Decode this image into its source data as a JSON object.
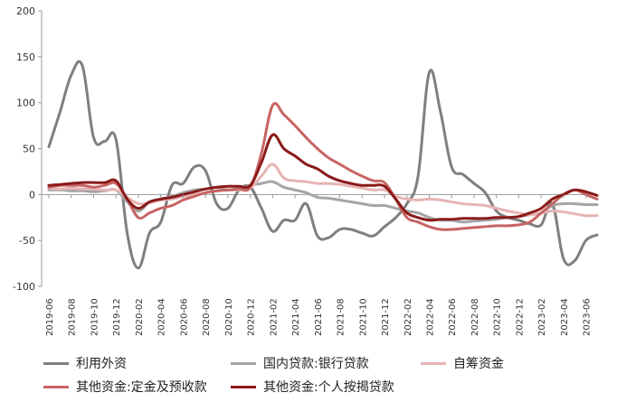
{
  "chart_data": {
    "type": "line",
    "title": "",
    "xlabel": "",
    "ylabel": "",
    "ylim": [
      -100,
      200
    ],
    "yticks": [
      -100,
      -50,
      0,
      50,
      100,
      150,
      200
    ],
    "x": [
      "2019-06",
      "2019-07",
      "2019-08",
      "2019-09",
      "2019-10",
      "2019-11",
      "2019-12",
      "2020-01",
      "2020-02",
      "2020-03",
      "2020-04",
      "2020-05",
      "2020-06",
      "2020-07",
      "2020-08",
      "2020-09",
      "2020-10",
      "2020-11",
      "2020-12",
      "2021-01",
      "2021-02",
      "2021-03",
      "2021-04",
      "2021-05",
      "2021-06",
      "2021-07",
      "2021-08",
      "2021-09",
      "2021-10",
      "2021-11",
      "2021-12",
      "2022-01",
      "2022-02",
      "2022-03",
      "2022-04",
      "2022-05",
      "2022-06",
      "2022-07",
      "2022-08",
      "2022-09",
      "2022-10",
      "2022-11",
      "2022-12",
      "2023-01",
      "2023-02",
      "2023-03",
      "2023-04",
      "2023-05",
      "2023-06",
      "2023-07"
    ],
    "xtick_labels": [
      "2019-06",
      "2019-08",
      "2019-10",
      "2019-12",
      "2020-02",
      "2020-04",
      "2020-06",
      "2020-08",
      "2020-10",
      "2020-12",
      "2021-02",
      "2021-04",
      "2021-06",
      "2021-08",
      "2021-10",
      "2021-12",
      "2022-02",
      "2022-04",
      "2022-06",
      "2022-08",
      "2022-10",
      "2022-12",
      "2023-02",
      "2023-04",
      "2023-06"
    ],
    "grid": false,
    "legend_position": "bottom",
    "series": [
      {
        "name": "利用外资",
        "color": "#7f7f7f",
        "values": [
          52,
          90,
          130,
          140,
          62,
          58,
          60,
          -42,
          -80,
          -42,
          -30,
          10,
          12,
          30,
          26,
          -10,
          -15,
          5,
          8,
          -15,
          -40,
          -28,
          -28,
          -10,
          -45,
          -47,
          -38,
          -38,
          -42,
          -45,
          -35,
          -25,
          -10,
          20,
          133,
          90,
          30,
          22,
          12,
          2,
          -18,
          -25,
          -28,
          -32,
          -33,
          -10,
          -70,
          -72,
          -50,
          -44
        ]
      },
      {
        "name": "国内贷款:银行贷款",
        "color": "#a5a5a5",
        "values": [
          5,
          5,
          4,
          4,
          3,
          4,
          5,
          -8,
          -18,
          -8,
          -5,
          -2,
          2,
          5,
          6,
          8,
          5,
          7,
          10,
          12,
          14,
          8,
          5,
          2,
          -3,
          -4,
          -6,
          -8,
          -10,
          -12,
          -12,
          -15,
          -18,
          -20,
          -25,
          -28,
          -28,
          -30,
          -29,
          -28,
          -27,
          -25,
          -24,
          -22,
          -20,
          -12,
          -10,
          -10,
          -11,
          -11
        ]
      },
      {
        "name": "自筹资金",
        "color": "#e8b4b4",
        "values": [
          7,
          6,
          7,
          6,
          6,
          5,
          5,
          -3,
          -10,
          -9,
          -6,
          -5,
          -2,
          0,
          2,
          4,
          5,
          5,
          7,
          20,
          33,
          18,
          15,
          14,
          12,
          12,
          11,
          9,
          7,
          5,
          5,
          -2,
          -5,
          -6,
          -5,
          -6,
          -8,
          -10,
          -11,
          -12,
          -15,
          -18,
          -20,
          -22,
          -20,
          -18,
          -19,
          -21,
          -23,
          -23
        ]
      },
      {
        "name": "其他资金:定金及预收款",
        "color": "#c86464",
        "values": [
          8,
          10,
          10,
          10,
          8,
          10,
          12,
          -5,
          -25,
          -20,
          -15,
          -12,
          -6,
          -2,
          2,
          4,
          5,
          6,
          8,
          45,
          97,
          87,
          75,
          62,
          50,
          40,
          33,
          26,
          20,
          15,
          13,
          -5,
          -25,
          -30,
          -35,
          -38,
          -38,
          -37,
          -36,
          -35,
          -34,
          -34,
          -33,
          -30,
          -20,
          -10,
          0,
          5,
          0,
          -5
        ]
      },
      {
        "name": "其他资金:个人按揭贷款",
        "color": "#8b1a1a",
        "values": [
          10,
          11,
          12,
          13,
          13,
          13,
          15,
          -5,
          -15,
          -8,
          -5,
          -3,
          0,
          3,
          6,
          8,
          9,
          9,
          10,
          35,
          65,
          50,
          42,
          33,
          28,
          20,
          15,
          12,
          10,
          10,
          9,
          -5,
          -20,
          -25,
          -28,
          -27,
          -27,
          -26,
          -26,
          -26,
          -25,
          -25,
          -24,
          -20,
          -15,
          -5,
          0,
          5,
          3,
          -1
        ]
      }
    ]
  }
}
